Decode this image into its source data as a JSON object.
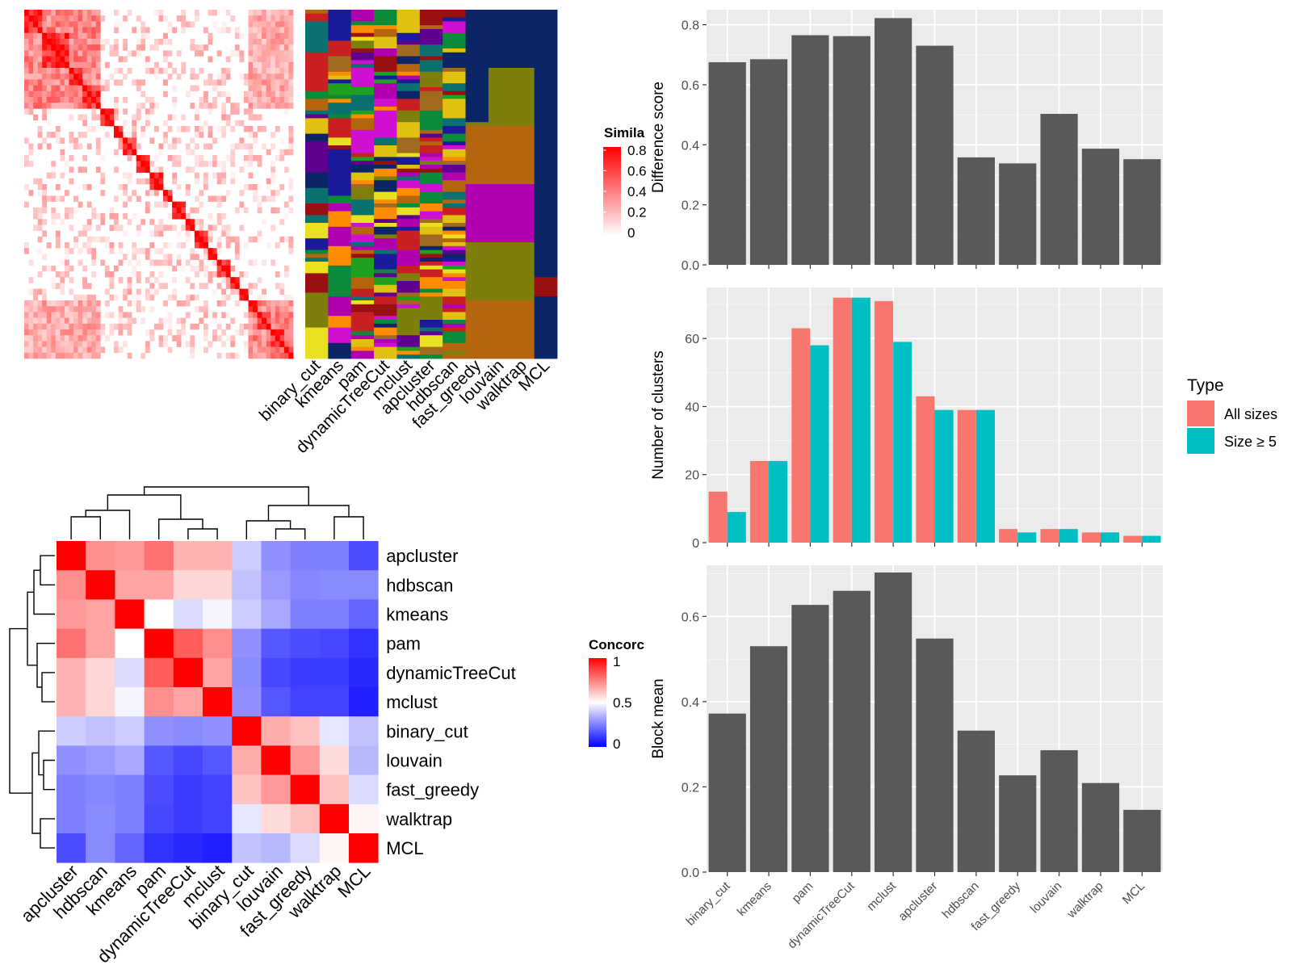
{
  "colors": {
    "bar_gray": "#595959",
    "panel_bg": "#ebebeb",
    "grid": "#ffffff",
    "all_sizes": "#f8766d",
    "size_ge5": "#00bfc4",
    "sim_high": "#ff0000",
    "conc_low": "#0000ff",
    "conc_mid": "#ffffff",
    "conc_high": "#ff0000",
    "cluster_palette": [
      "#0b2567",
      "#b5650e",
      "#7e7e0a",
      "#b000b0",
      "#0b8a3a",
      "#e0c010",
      "#9a1010",
      "#1a1a9a",
      "#d010d0",
      "#20a020",
      "#a06a20",
      "#c82020",
      "#0a7070",
      "#e8e020",
      "#600090",
      "#ff8c00"
    ]
  },
  "similarity_heatmap": {
    "legend_title": "Simila",
    "legend_ticks": [
      "0.8",
      "0.6",
      "0.4",
      "0.2",
      "0"
    ]
  },
  "membership_heatmap": {
    "methods": [
      "binary_cut",
      "kmeans",
      "pam",
      "dynamicTreeCut",
      "mclust",
      "apcluster",
      "hdbscan",
      "fast_greedy",
      "louvain",
      "walktrap",
      "MCL"
    ]
  },
  "concordance_heatmap": {
    "legend_title": "Concorc",
    "legend_ticks": [
      "1",
      "0.5",
      "0"
    ],
    "methods": [
      "apcluster",
      "hdbscan",
      "kmeans",
      "pam",
      "dynamicTreeCut",
      "mclust",
      "binary_cut",
      "louvain",
      "fast_greedy",
      "walktrap",
      "MCL"
    ]
  },
  "chart_data": [
    {
      "type": "heatmap",
      "title": "",
      "legend_title": "Concorc",
      "rows": [
        "apcluster",
        "hdbscan",
        "kmeans",
        "pam",
        "dynamicTreeCut",
        "mclust",
        "binary_cut",
        "louvain",
        "fast_greedy",
        "walktrap",
        "MCL"
      ],
      "columns": [
        "apcluster",
        "hdbscan",
        "kmeans",
        "pam",
        "dynamicTreeCut",
        "mclust",
        "binary_cut",
        "louvain",
        "fast_greedy",
        "walktrap",
        "MCL"
      ],
      "range": [
        0,
        1
      ],
      "values": [
        [
          1.0,
          0.72,
          0.7,
          0.78,
          0.65,
          0.65,
          0.4,
          0.28,
          0.25,
          0.25,
          0.15
        ],
        [
          0.72,
          1.0,
          0.68,
          0.68,
          0.58,
          0.58,
          0.38,
          0.3,
          0.26,
          0.27,
          0.27
        ],
        [
          0.7,
          0.68,
          1.0,
          0.5,
          0.43,
          0.48,
          0.4,
          0.33,
          0.25,
          0.25,
          0.2
        ],
        [
          0.78,
          0.68,
          0.5,
          1.0,
          0.82,
          0.72,
          0.28,
          0.17,
          0.15,
          0.14,
          0.1
        ],
        [
          0.65,
          0.58,
          0.43,
          0.82,
          1.0,
          0.68,
          0.27,
          0.14,
          0.12,
          0.12,
          0.08
        ],
        [
          0.65,
          0.58,
          0.48,
          0.72,
          0.68,
          1.0,
          0.28,
          0.17,
          0.13,
          0.13,
          0.06
        ],
        [
          0.4,
          0.38,
          0.4,
          0.28,
          0.27,
          0.28,
          1.0,
          0.66,
          0.62,
          0.45,
          0.38
        ],
        [
          0.28,
          0.3,
          0.33,
          0.17,
          0.14,
          0.17,
          0.66,
          1.0,
          0.7,
          0.57,
          0.36
        ],
        [
          0.25,
          0.26,
          0.25,
          0.15,
          0.12,
          0.13,
          0.62,
          0.7,
          1.0,
          0.62,
          0.43
        ],
        [
          0.25,
          0.27,
          0.25,
          0.14,
          0.12,
          0.13,
          0.45,
          0.57,
          0.62,
          1.0,
          0.52
        ],
        [
          0.15,
          0.27,
          0.2,
          0.1,
          0.08,
          0.06,
          0.38,
          0.36,
          0.43,
          0.52,
          1.0
        ]
      ]
    },
    {
      "type": "bar",
      "categories": [
        "binary_cut",
        "kmeans",
        "pam",
        "dynamicTreeCut",
        "mclust",
        "apcluster",
        "hdbscan",
        "fast_greedy",
        "louvain",
        "walktrap",
        "MCL"
      ],
      "values": [
        0.675,
        0.685,
        0.765,
        0.762,
        0.822,
        0.73,
        0.358,
        0.338,
        0.503,
        0.387,
        0.352
      ],
      "ylabel": "Difference score",
      "xlabel": "",
      "ylim": [
        0,
        0.85
      ],
      "yticks": [
        "0.0",
        "0.2",
        "0.4",
        "0.6",
        "0.8"
      ]
    },
    {
      "type": "bar",
      "categories": [
        "binary_cut",
        "kmeans",
        "pam",
        "dynamicTreeCut",
        "mclust",
        "apcluster",
        "hdbscan",
        "fast_greedy",
        "louvain",
        "walktrap",
        "MCL"
      ],
      "series": [
        {
          "name": "All sizes",
          "values": [
            15,
            24,
            63,
            72,
            71,
            43,
            39,
            4,
            4,
            3,
            2
          ]
        },
        {
          "name": "Size ≥ 5",
          "values": [
            9,
            24,
            58,
            72,
            59,
            39,
            39,
            3,
            4,
            3,
            2
          ]
        }
      ],
      "ylabel": "Number of clusters",
      "xlabel": "",
      "legend_title": "Type",
      "legend_position": "right",
      "ylim": [
        0,
        75
      ],
      "yticks": [
        "0",
        "20",
        "40",
        "60"
      ]
    },
    {
      "type": "bar",
      "categories": [
        "binary_cut",
        "kmeans",
        "pam",
        "dynamicTreeCut",
        "mclust",
        "apcluster",
        "hdbscan",
        "fast_greedy",
        "louvain",
        "walktrap",
        "MCL"
      ],
      "values": [
        0.372,
        0.53,
        0.627,
        0.66,
        0.703,
        0.548,
        0.332,
        0.227,
        0.286,
        0.209,
        0.146
      ],
      "ylabel": "Block mean",
      "xlabel": "",
      "ylim": [
        0,
        0.72
      ],
      "yticks": [
        "0.0",
        "0.2",
        "0.4",
        "0.6"
      ]
    }
  ]
}
